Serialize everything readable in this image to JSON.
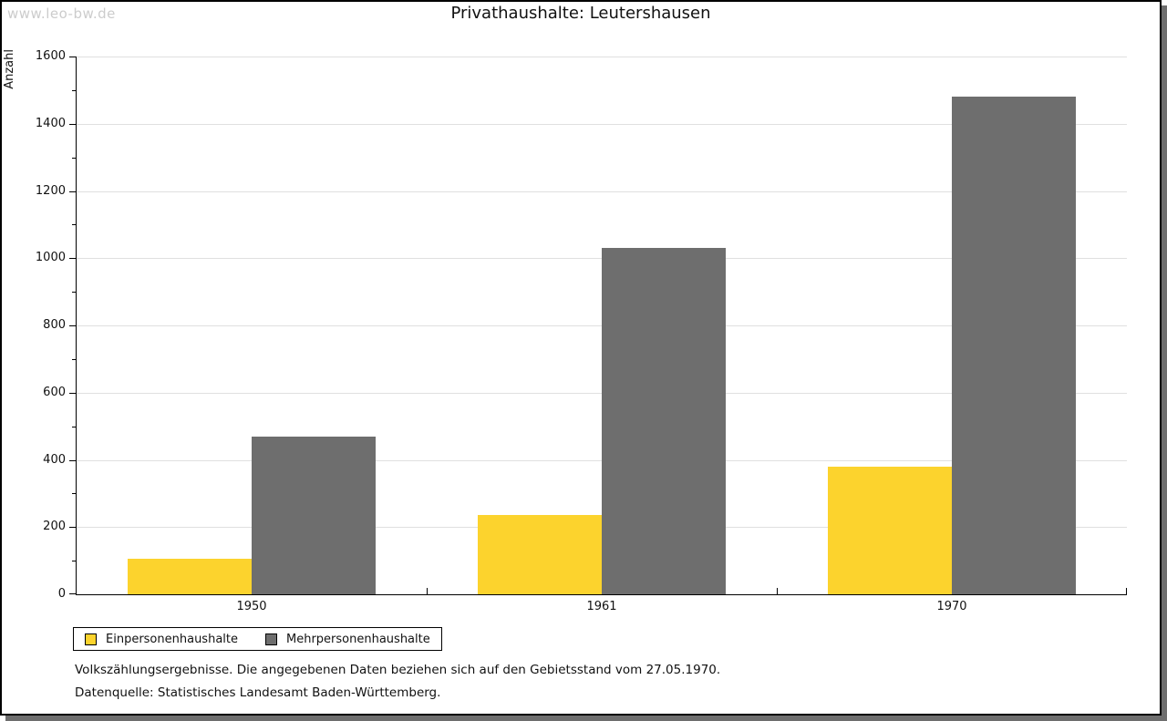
{
  "watermark": "www.leo-bw.de",
  "chart_data": {
    "type": "bar",
    "title": "Privathaushalte: Leutershausen",
    "ylabel": "Anzahl",
    "xlabel": "",
    "categories": [
      "1950",
      "1961",
      "1970"
    ],
    "series": [
      {
        "name": "Einpersonenhaushalte",
        "color": "#FCD32D",
        "values": [
          105,
          235,
          380
        ]
      },
      {
        "name": "Mehrpersonenhaushalte",
        "color": "#6E6E6E",
        "values": [
          470,
          1030,
          1480
        ]
      }
    ],
    "ylim": [
      0,
      1600
    ],
    "y_ticks": [
      0,
      200,
      400,
      600,
      800,
      1000,
      1200,
      1400,
      1600
    ],
    "y_minor_step": 100,
    "grid": true,
    "gridline_color": "#e0e0e0",
    "legend_position": "bottom-left"
  },
  "footnotes": [
    "Volkszählungsergebnisse. Die angegebenen Daten beziehen sich auf den Gebietsstand vom 27.05.1970.",
    "Datenquelle: Statistisches Landesamt Baden-Württemberg."
  ]
}
